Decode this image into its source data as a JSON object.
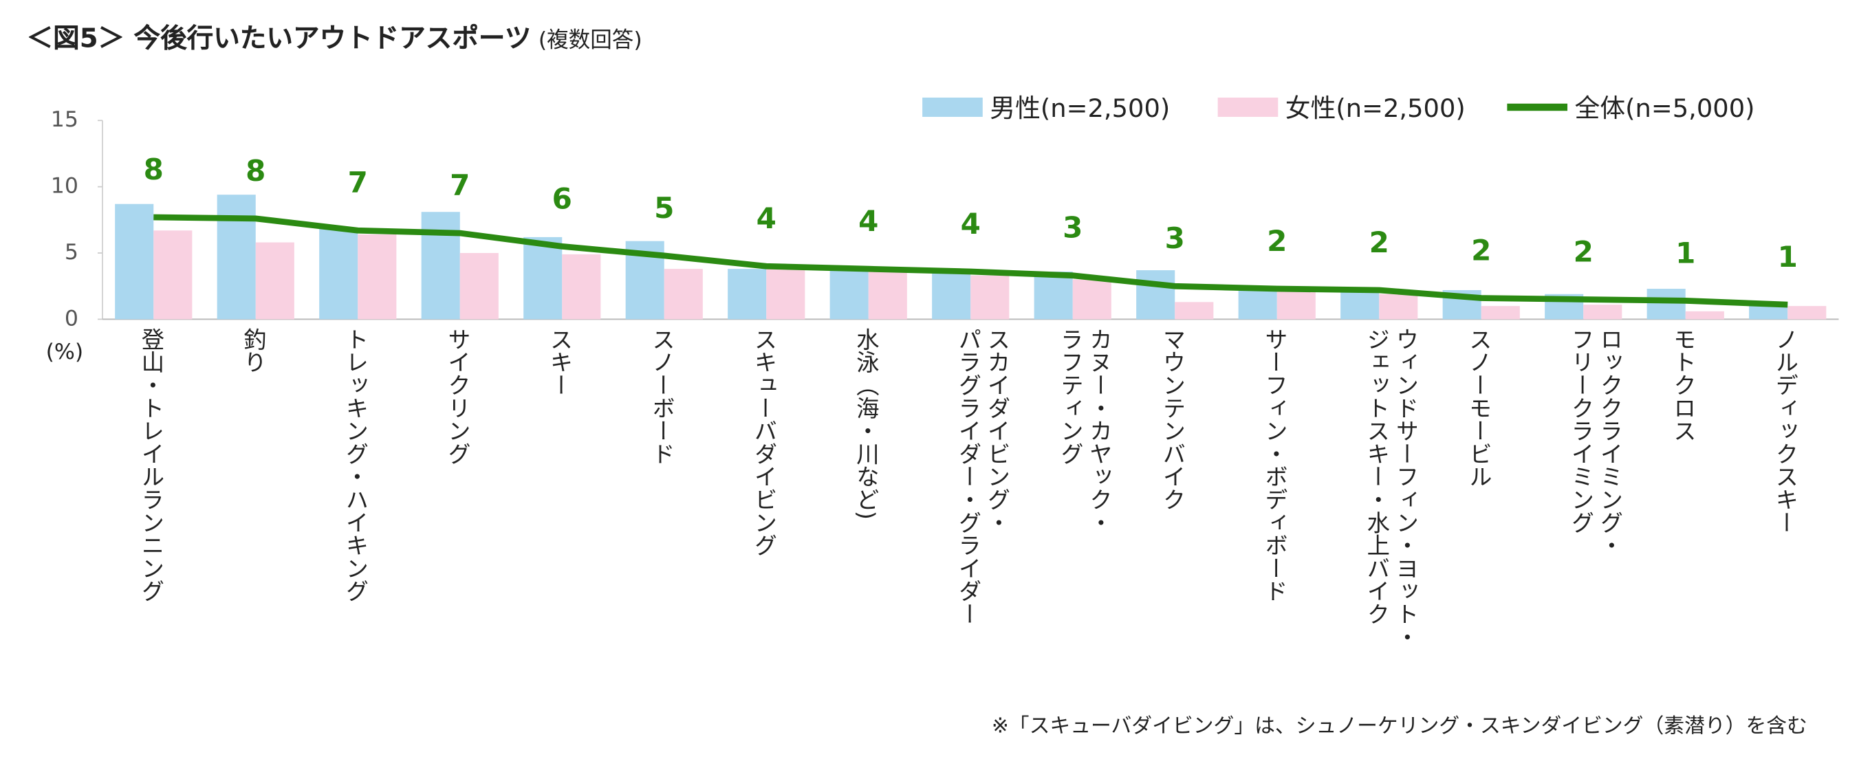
{
  "chart_data": {
    "type": "bar",
    "title": "＜図5＞ 今後行いたいアウトドアスポーツ",
    "subtitle": "(複数回答)",
    "y_unit_label": "(%)",
    "note": "※「スキューバダイビング」は、シュノーケリング・スキンダイビング（素潜り）を含む",
    "categories": [
      "登山・トレイルランニング",
      "釣り",
      "トレッキング・ハイキング",
      "サイクリング",
      "スキー",
      "スノーボード",
      "スキューバダイビング",
      "水泳（海・川など)",
      "スカイダイビング・\nパラグライダー・グライダー",
      "カヌー・カヤック・\nラフティング",
      "マウンテンバイク",
      "サーフィン・ボディボード",
      "ウィンドサーフィン・ヨット・\nジェットスキー・水上バイク",
      "スノーモービル",
      "ロッククライミング・\nフリークライミング",
      "モトクロス",
      "ノルディックスキー"
    ],
    "series": [
      {
        "name": "男性(n=2,500)",
        "type": "bar",
        "color": "#aad7ef",
        "values": [
          8.7,
          9.4,
          6.9,
          8.1,
          6.2,
          5.9,
          3.8,
          4.0,
          3.8,
          3.6,
          3.7,
          2.5,
          2.4,
          2.2,
          1.9,
          2.3,
          1.2
        ]
      },
      {
        "name": "女性(n=2,500)",
        "type": "bar",
        "color": "#f9d1e1",
        "values": [
          6.7,
          5.8,
          6.4,
          5.0,
          4.9,
          3.8,
          4.1,
          3.6,
          3.3,
          3.0,
          1.3,
          2.1,
          1.9,
          1.0,
          1.1,
          0.6,
          1.0
        ]
      },
      {
        "name": "全体(n=5,000)",
        "type": "line",
        "color": "#2b8a12",
        "values": [
          7.7,
          7.6,
          6.7,
          6.5,
          5.5,
          4.8,
          4.0,
          3.8,
          3.6,
          3.3,
          2.5,
          2.3,
          2.2,
          1.6,
          1.5,
          1.4,
          1.1
        ],
        "value_labels": [
          "8",
          "8",
          "7",
          "7",
          "6",
          "5",
          "4",
          "4",
          "4",
          "3",
          "3",
          "2",
          "2",
          "2",
          "2",
          "1",
          "1"
        ]
      }
    ],
    "ylim": [
      0,
      15
    ],
    "yticks": [
      0,
      5,
      10,
      15
    ],
    "grid": false,
    "legend": "top-right"
  }
}
